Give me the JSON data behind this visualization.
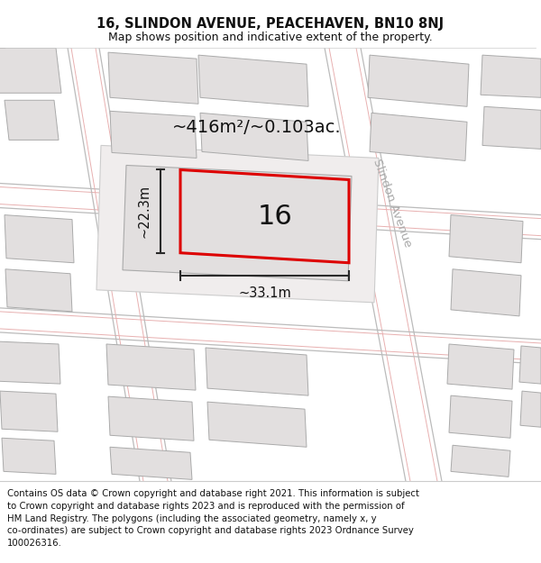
{
  "title_line1": "16, SLINDON AVENUE, PEACEHAVEN, BN10 8NJ",
  "title_line2": "Map shows position and indicative extent of the property.",
  "footer_text": "Contains OS data © Crown copyright and database right 2021. This information is subject\nto Crown copyright and database rights 2023 and is reproduced with the permission of\nHM Land Registry. The polygons (including the associated geometry, namely x, y\nco-ordinates) are subject to Crown copyright and database rights 2023 Ordnance Survey\n100026316.",
  "area_label": "~416m²/~0.103ac.",
  "width_label": "~33.1m",
  "height_label": "~22.3m",
  "plot_number": "16",
  "street_label": "Slindon Avenue",
  "map_bg": "#f7f5f5",
  "building_fill": "#e2dfdf",
  "building_edge": "#aaaaaa",
  "plot_outline_fill": "#f0eded",
  "plot_outline_edge": "#cccccc",
  "highlight_edge": "#dd0000",
  "pink_line_color": "#e8b0b0",
  "road_edge_color": "#bbbbbb",
  "dim_color": "#2a2a2a",
  "street_label_color": "#aaaaaa",
  "title_fontsize": 10.5,
  "subtitle_fontsize": 9.0,
  "footer_fontsize": 7.3,
  "area_fontsize": 14,
  "dim_fontsize": 10.5,
  "plot_num_fontsize": 22,
  "street_fontsize": 9.5
}
